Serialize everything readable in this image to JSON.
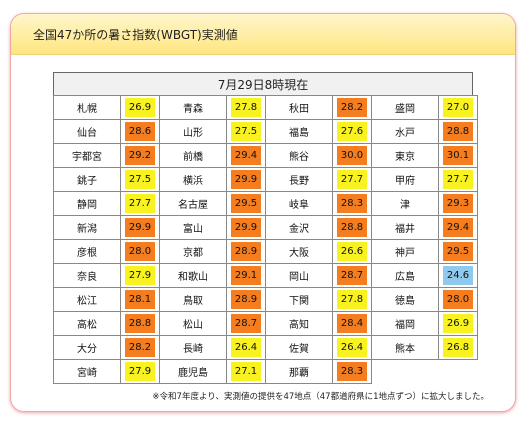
{
  "header": {
    "title": "全国47か所の暑さ指数(WBGT)実測値"
  },
  "table": {
    "date_label": "7月29日8時現在",
    "level_colors": {
      "severe": "#f47d1f",
      "warning": "#f8f320",
      "caution": "#8fc9ee"
    },
    "rows": [
      [
        {
          "name": "札幌",
          "value": "26.9",
          "level": "warning"
        },
        {
          "name": "青森",
          "value": "27.8",
          "level": "warning"
        },
        {
          "name": "秋田",
          "value": "28.2",
          "level": "severe"
        },
        {
          "name": "盛岡",
          "value": "27.0",
          "level": "warning"
        }
      ],
      [
        {
          "name": "仙台",
          "value": "28.6",
          "level": "severe"
        },
        {
          "name": "山形",
          "value": "27.5",
          "level": "warning"
        },
        {
          "name": "福島",
          "value": "27.6",
          "level": "warning"
        },
        {
          "name": "水戸",
          "value": "28.8",
          "level": "severe"
        }
      ],
      [
        {
          "name": "宇都宮",
          "value": "29.2",
          "level": "severe"
        },
        {
          "name": "前橋",
          "value": "29.4",
          "level": "severe"
        },
        {
          "name": "熊谷",
          "value": "30.0",
          "level": "severe"
        },
        {
          "name": "東京",
          "value": "30.1",
          "level": "severe"
        }
      ],
      [
        {
          "name": "銚子",
          "value": "27.5",
          "level": "warning"
        },
        {
          "name": "横浜",
          "value": "29.9",
          "level": "severe"
        },
        {
          "name": "長野",
          "value": "27.7",
          "level": "warning"
        },
        {
          "name": "甲府",
          "value": "27.7",
          "level": "warning"
        }
      ],
      [
        {
          "name": "静岡",
          "value": "27.7",
          "level": "warning"
        },
        {
          "name": "名古屋",
          "value": "29.5",
          "level": "severe"
        },
        {
          "name": "岐阜",
          "value": "28.3",
          "level": "severe"
        },
        {
          "name": "津",
          "value": "29.3",
          "level": "severe"
        }
      ],
      [
        {
          "name": "新潟",
          "value": "29.9",
          "level": "severe"
        },
        {
          "name": "富山",
          "value": "29.9",
          "level": "severe"
        },
        {
          "name": "金沢",
          "value": "28.8",
          "level": "severe"
        },
        {
          "name": "福井",
          "value": "29.4",
          "level": "severe"
        }
      ],
      [
        {
          "name": "彦根",
          "value": "28.0",
          "level": "severe"
        },
        {
          "name": "京都",
          "value": "28.9",
          "level": "severe"
        },
        {
          "name": "大阪",
          "value": "26.6",
          "level": "warning"
        },
        {
          "name": "神戸",
          "value": "29.5",
          "level": "severe"
        }
      ],
      [
        {
          "name": "奈良",
          "value": "27.9",
          "level": "warning"
        },
        {
          "name": "和歌山",
          "value": "29.1",
          "level": "severe"
        },
        {
          "name": "岡山",
          "value": "28.7",
          "level": "severe"
        },
        {
          "name": "広島",
          "value": "24.6",
          "level": "caution"
        }
      ],
      [
        {
          "name": "松江",
          "value": "28.1",
          "level": "severe"
        },
        {
          "name": "鳥取",
          "value": "28.9",
          "level": "severe"
        },
        {
          "name": "下関",
          "value": "27.8",
          "level": "warning"
        },
        {
          "name": "徳島",
          "value": "28.0",
          "level": "severe"
        }
      ],
      [
        {
          "name": "高松",
          "value": "28.8",
          "level": "severe"
        },
        {
          "name": "松山",
          "value": "28.7",
          "level": "severe"
        },
        {
          "name": "高知",
          "value": "28.4",
          "level": "severe"
        },
        {
          "name": "福岡",
          "value": "26.9",
          "level": "warning"
        }
      ],
      [
        {
          "name": "大分",
          "value": "28.2",
          "level": "severe"
        },
        {
          "name": "長崎",
          "value": "26.4",
          "level": "warning"
        },
        {
          "name": "佐賀",
          "value": "26.4",
          "level": "warning"
        },
        {
          "name": "熊本",
          "value": "26.8",
          "level": "warning"
        }
      ],
      [
        {
          "name": "宮崎",
          "value": "27.9",
          "level": "warning"
        },
        {
          "name": "鹿児島",
          "value": "27.1",
          "level": "warning"
        },
        {
          "name": "那覇",
          "value": "28.3",
          "level": "severe"
        }
      ]
    ]
  },
  "footnote": "※令和7年度より、実測値の提供を47地点（47都道府県に1地点ずつ）に拡大しました。"
}
